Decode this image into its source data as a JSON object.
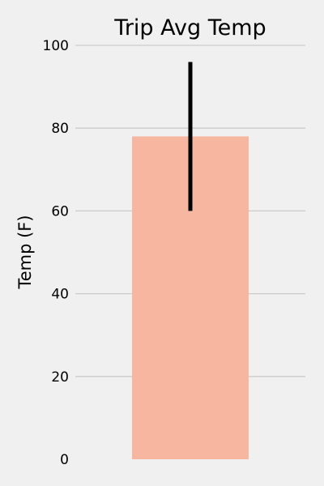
{
  "chart_data": {
    "type": "bar",
    "title": "Trip Avg Temp",
    "xlabel": "",
    "ylabel": "Temp (F)",
    "ylim": [
      0,
      100
    ],
    "yticks": [
      0,
      20,
      40,
      60,
      80,
      100
    ],
    "xticks_visible": false,
    "grid": "horizontal",
    "legend": "none",
    "categories": [
      ""
    ],
    "values": [
      78
    ],
    "error_bars": [
      {
        "lower": 60,
        "upper": 96
      }
    ],
    "colors": {
      "background": "#f0f0f0",
      "bar": "#f6b6a0",
      "error_bar": "#000000",
      "grid": "#cbcbcb",
      "text": "#000000"
    }
  }
}
